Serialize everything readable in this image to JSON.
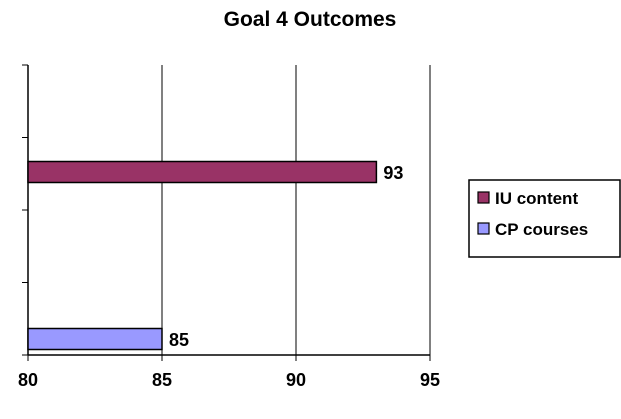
{
  "chart_data": {
    "type": "bar",
    "orientation": "horizontal",
    "title": "Goal 4 Outcomes",
    "xlim": [
      80,
      95
    ],
    "x_ticks": [
      80,
      85,
      90,
      95
    ],
    "grid": "vertical",
    "legend_position": "right",
    "series": [
      {
        "name": "IU content",
        "value": 93,
        "color": "#993366"
      },
      {
        "name": "CP courses",
        "value": 85,
        "color": "#9999ff"
      }
    ]
  }
}
